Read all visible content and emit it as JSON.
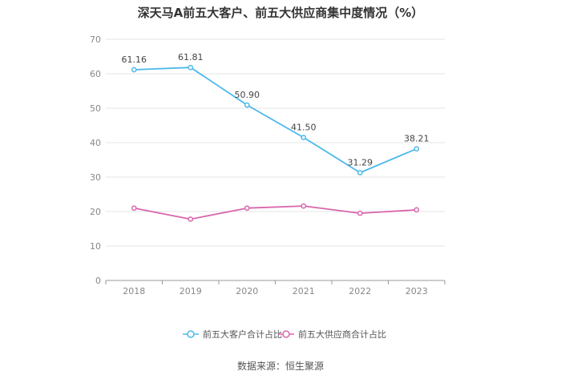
{
  "chart_data": {
    "type": "line",
    "title": "深天马A前五大客户、前五大供应商集中度情况（%）",
    "categories": [
      "2018",
      "2019",
      "2020",
      "2021",
      "2022",
      "2023"
    ],
    "ylim": [
      0,
      70
    ],
    "yticks": [
      0,
      10,
      20,
      30,
      40,
      50,
      60,
      70
    ],
    "grid": true,
    "legend_position": "bottom-center",
    "series": [
      {
        "name": "前五大客户合计占比",
        "color": "#4db8ec",
        "values": [
          61.16,
          61.81,
          50.9,
          41.5,
          31.29,
          38.21
        ],
        "labels": [
          "61.16",
          "61.81",
          "50.90",
          "41.50",
          "31.29",
          "38.21"
        ],
        "show_labels": true
      },
      {
        "name": "前五大供应商合计占比",
        "color": "#d966ad",
        "values": [
          21.0,
          17.8,
          21.0,
          21.6,
          19.5,
          20.5
        ],
        "show_labels": false
      }
    ],
    "source": "数据来源：恒生聚源"
  }
}
